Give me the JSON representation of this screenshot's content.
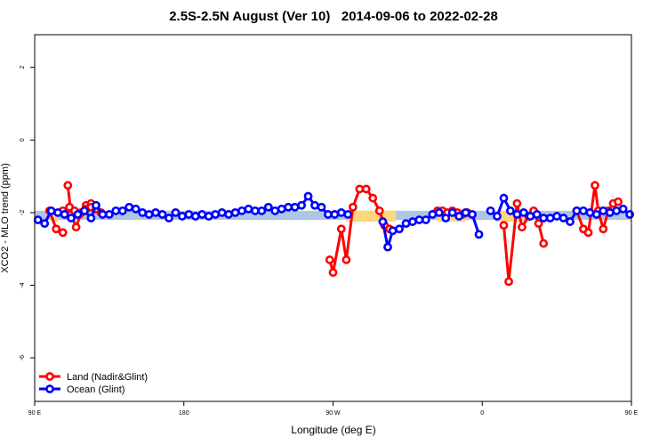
{
  "title": "2.5S-2.5N August (Ver 10)   2014-09-06 to 2022-02-28",
  "chart_data": {
    "type": "line",
    "title": "2.5S-2.5N August (Ver 10)   2014-09-06 to 2022-02-28",
    "xlabel": "Longitude (deg E)",
    "ylabel": "XCO2 - MLO trend (ppm)",
    "xlim": [
      90,
      450
    ],
    "ylim": [
      -7.2,
      2.9
    ],
    "x_ticks": [
      {
        "value": 90,
        "label": "90 E"
      },
      {
        "value": 180,
        "label": "180"
      },
      {
        "value": 270,
        "label": "90 W"
      },
      {
        "value": 360,
        "label": "0"
      },
      {
        "value": 450,
        "label": "90 E"
      }
    ],
    "y_ticks": [
      {
        "value": 2,
        "label": "2"
      },
      {
        "value": 0,
        "label": "0"
      },
      {
        "value": -2,
        "label": "-2"
      },
      {
        "value": -4,
        "label": "-4"
      },
      {
        "value": -6,
        "label": "-6"
      }
    ],
    "grid": false,
    "legend_position": "bottom-left",
    "bands": [
      {
        "x0": 90,
        "x1": 450,
        "y0": -2.2,
        "y1": -1.95,
        "color": "#aec6e6"
      },
      {
        "x0": 278,
        "x1": 308,
        "y0": -2.25,
        "y1": -1.95,
        "color": "#ffd77a"
      },
      {
        "x0": 100,
        "x1": 104,
        "y0": -2.25,
        "y1": -1.95,
        "color": "#ffd77a"
      },
      {
        "x0": 300,
        "x1": 304,
        "y0": -2.25,
        "y1": -1.95,
        "color": "#ffd77a"
      },
      {
        "x0": 100,
        "x1": 101,
        "y0": -2.25,
        "y1": -1.95,
        "color": "#ffd77a"
      },
      {
        "x0": 100,
        "x1": 100.5,
        "y0": -2.25,
        "y1": -1.95,
        "color": "#ffd77a"
      },
      {
        "x0": 100,
        "x1": 100.2,
        "y0": -2.25,
        "y1": -1.95,
        "color": "#ffd77a"
      },
      {
        "x0": 100,
        "x1": 100.1,
        "y0": -2.25,
        "y1": -1.95,
        "color": "#ffd77a"
      },
      {
        "x0": 100,
        "x1": 100.05,
        "y0": -2.25,
        "y1": -1.95,
        "color": "#ffd77a"
      },
      {
        "x0": 100,
        "x1": 100.01,
        "y0": -2.25,
        "y1": -1.95,
        "color": "#ffd77a"
      },
      {
        "x0": 100,
        "x1": 100.005,
        "y0": -2.25,
        "y1": -1.95,
        "color": "#ffd77a"
      },
      {
        "x0": 100,
        "x1": 100.001,
        "y0": -2.25,
        "y1": -1.95,
        "color": "#ffd77a"
      },
      {
        "x0": 100,
        "x1": 100.0005,
        "y0": -2.25,
        "y1": -1.95,
        "color": "#ffd77a"
      },
      {
        "x0": 100,
        "x1": 100.0001,
        "y0": -2.25,
        "y1": -1.95,
        "color": "#ffd77a"
      },
      {
        "x0": 100,
        "x1": 100.00005,
        "y0": -2.25,
        "y1": -1.95,
        "color": "#ffd77a"
      },
      {
        "x0": 100,
        "x1": 100.00001,
        "y0": -2.25,
        "y1": -1.95,
        "color": "#ffd77a"
      },
      {
        "x0": 100,
        "x1": 100.000005,
        "y0": -2.25,
        "y1": -1.95,
        "color": "#ffd77a"
      },
      {
        "x0": 100,
        "x1": 100.000001,
        "y0": -2.25,
        "y1": -1.95,
        "color": "#ffd77a"
      },
      {
        "x0": 100,
        "x1": 100.0000005,
        "y0": -2.25,
        "y1": -1.95,
        "color": "#ffd77a"
      },
      {
        "x0": 100,
        "x1": 100.0000001,
        "y0": -2.25,
        "y1": -1.95,
        "color": "#ffd77a"
      },
      {
        "x0": 100,
        "x1": 100.00000005,
        "y0": -2.25,
        "y1": -1.95,
        "color": "#ffd77a"
      },
      {
        "x0": 100,
        "x1": 100.00000001,
        "y0": -2.25,
        "y1": -1.95,
        "color": "#ffd77a"
      },
      {
        "x0": 100,
        "x1": 100.000000005,
        "y0": -2.25,
        "y1": -1.95,
        "color": "#ffd77a"
      },
      {
        "x0": 100,
        "x1": 100.000000001,
        "y0": -2.25,
        "y1": -1.95,
        "color": "#ffd77a"
      },
      {
        "x0": 333,
        "x1": 350,
        "y0": -2.25,
        "y1": -1.95,
        "color": "#ffd77a"
      },
      {
        "x0": 368,
        "x1": 389,
        "y0": -2.25,
        "y1": -1.95,
        "color": "#ffd77a"
      },
      {
        "x0": 449,
        "x1": 450,
        "y0": -2.25,
        "y1": -1.95,
        "color": "#ffd77a"
      }
    ],
    "series": [
      {
        "name": "Land (Nadir&Glint)",
        "color": "#ff0000",
        "segments": [
          {
            "x": [
              99,
              103,
              107
            ],
            "y": [
              -1.95,
              -2.45,
              -2.55
            ]
          },
          {
            "x": [
              110,
              112,
              115,
              118,
              121,
              124,
              127
            ],
            "y": [
              -1.25,
              -2.05,
              -2.4,
              -2.0,
              -1.8,
              -1.75,
              -1.9
            ]
          },
          {
            "x": [
              268,
              270,
              275,
              278,
              282,
              286,
              290,
              294,
              298,
              301,
              304
            ],
            "y": [
              -3.3,
              -3.65,
              -2.45,
              -3.3,
              -1.85,
              -1.35,
              -1.35,
              -1.6,
              -1.95,
              -2.35,
              -2.45
            ]
          },
          {
            "x": [
              107,
              111,
              114,
              117,
              121,
              124,
              127,
              130
            ],
            "y": [
              -1.95,
              -1.85,
              -1.95,
              -2.05,
              -1.9,
              -1.85,
              -1.9,
              -2.0
            ]
          },
          {
            "x": [
              373,
              376,
              381,
              384,
              388,
              391,
              394,
              397
            ],
            "y": [
              -2.35,
              -3.9,
              -1.75,
              -2.4,
              -2.1,
              -1.95,
              -2.3,
              -2.85
            ]
          },
          {
            "x": [
              417,
              421,
              424,
              428,
              430,
              433,
              436,
              439,
              442
            ],
            "y": [
              -1.95,
              -2.45,
              -2.55,
              -1.25,
              -1.95,
              -2.45,
              -1.95,
              -1.75,
              -1.7
            ]
          },
          {
            "x": [
              333,
              336,
              339,
              342,
              345,
              348,
              351
            ],
            "y": [
              -1.95,
              -1.95,
              -2.0,
              -1.95,
              -2.0,
              -2.05,
              -2.0
            ]
          }
        ]
      },
      {
        "name": "Ocean (Glint)",
        "color": "#0000ff",
        "segments": [
          {
            "x": [
              92,
              96,
              100,
              104,
              108,
              112,
              116,
              120,
              124,
              127,
              131,
              135,
              139,
              143,
              147,
              151,
              155,
              159,
              163,
              167,
              171,
              175,
              179,
              183,
              187,
              191,
              195,
              199,
              203,
              207,
              211,
              215,
              219,
              223,
              227,
              231,
              235,
              239,
              243,
              247,
              251,
              255,
              259,
              263,
              267,
              271,
              275,
              279
            ],
            "y": [
              -2.2,
              -2.3,
              -1.95,
              -2.0,
              -2.05,
              -2.15,
              -2.05,
              -1.95,
              -2.15,
              -1.8,
              -2.05,
              -2.05,
              -1.95,
              -1.95,
              -1.85,
              -1.9,
              -2.0,
              -2.05,
              -2.0,
              -2.05,
              -2.15,
              -2.0,
              -2.1,
              -2.05,
              -2.1,
              -2.05,
              -2.1,
              -2.05,
              -2.0,
              -2.05,
              -2.0,
              -1.95,
              -1.9,
              -1.95,
              -1.95,
              -1.85,
              -1.95,
              -1.9,
              -1.85,
              -1.85,
              -1.8,
              -1.55,
              -1.8,
              -1.85,
              -2.05,
              -2.05,
              -2.0,
              -2.05
            ]
          },
          {
            "x": [
              300,
              303,
              306,
              310,
              314,
              318,
              322,
              326,
              330,
              334,
              338,
              342,
              346,
              350,
              354,
              358
            ],
            "y": [
              -2.25,
              -2.95,
              -2.5,
              -2.45,
              -2.3,
              -2.25,
              -2.2,
              -2.2,
              -2.05,
              -2.0,
              -2.15,
              -2.0,
              -2.1,
              -2.0,
              -2.05,
              -2.6
            ]
          },
          {
            "x": [
              365,
              369,
              373,
              377,
              381,
              385,
              389,
              393,
              397,
              401,
              405,
              409,
              413,
              417,
              421,
              425,
              429,
              433,
              437,
              441,
              445,
              449
            ],
            "y": [
              -1.95,
              -2.1,
              -1.6,
              -1.95,
              -2.05,
              -2.0,
              -2.1,
              -2.05,
              -2.15,
              -2.15,
              -2.1,
              -2.15,
              -2.25,
              -1.95,
              -1.95,
              -2.0,
              -2.05,
              -1.95,
              -2.0,
              -1.95,
              -1.9,
              -2.05
            ]
          }
        ]
      }
    ]
  }
}
